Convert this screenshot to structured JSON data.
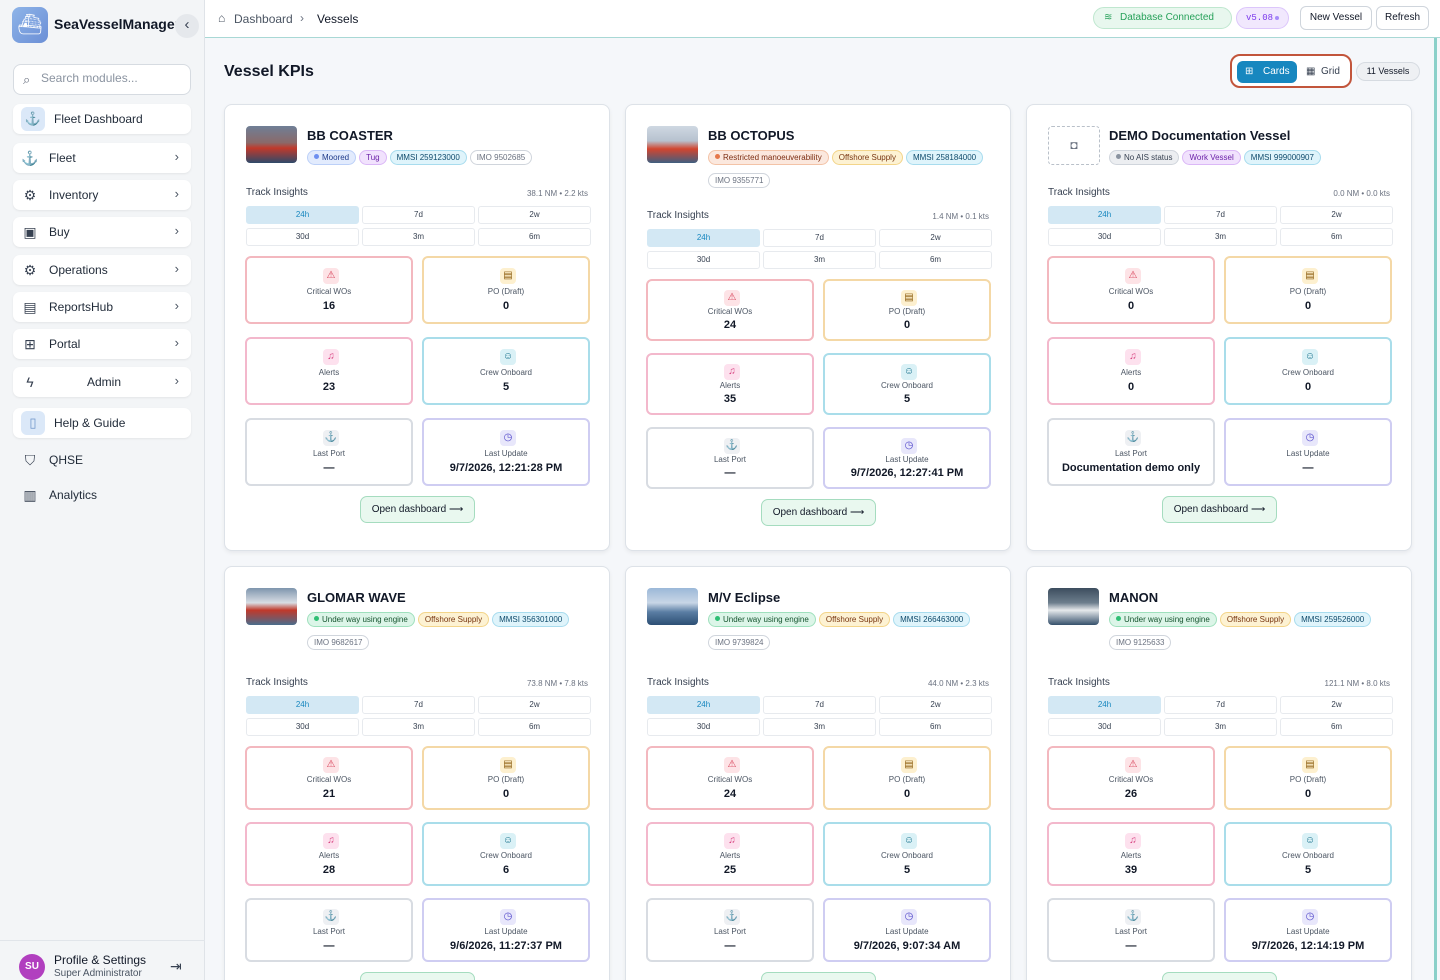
{
  "app": {
    "name": "SeaVesselManager"
  },
  "sidebar": {
    "search_placeholder": "Search modules...",
    "items": [
      {
        "label": "Fleet Dashboard"
      },
      {
        "label": "Fleet"
      },
      {
        "label": "Inventory"
      },
      {
        "label": "Buy"
      },
      {
        "label": "Operations"
      },
      {
        "label": "ReportsHub"
      },
      {
        "label": "Portal"
      },
      {
        "label": "Admin"
      },
      {
        "label": "Help & Guide"
      },
      {
        "label": "QHSE"
      },
      {
        "label": "Analytics"
      }
    ],
    "profile": {
      "initials": "SU",
      "name": "Profile & Settings",
      "role": "Super Administrator"
    }
  },
  "header": {
    "breadcrumb": [
      "Dashboard",
      "Vessels"
    ],
    "db_status": "Database Connected",
    "version": "v5.08",
    "new_vessel": "New Vessel",
    "refresh": "Refresh"
  },
  "main": {
    "title": "Vessel KPIs",
    "view_cards": "Cards",
    "view_grid": "Grid",
    "vessel_count": "11 Vessels"
  },
  "labels": {
    "track_insights": "Track Insights",
    "ranges": [
      "24h",
      "7d",
      "2w",
      "30d",
      "3m",
      "6m"
    ],
    "critical_wos": "Critical WOs",
    "po_draft": "PO (Draft)",
    "alerts": "Alerts",
    "crew_onboard": "Crew Onboard",
    "last_port": "Last Port",
    "last_update": "Last Update",
    "open_dashboard": "Open dashboard ⟶"
  },
  "vessels": [
    {
      "name": "BB COASTER",
      "status": "Moored",
      "type": "Tug",
      "mmsi": "MMSI 259123000",
      "imo": "IMO 9502685",
      "summary": "38.1 NM • 2.2 kts",
      "critical_wos": "16",
      "po_draft": "0",
      "alerts": "23",
      "crew": "5",
      "last_port": "—",
      "last_update": "9/7/2026, 12:21:28 PM"
    },
    {
      "name": "BB OCTOPUS",
      "status": "Restricted manoeuverability",
      "type": "Offshore Supply",
      "mmsi": "MMSI 258184000",
      "imo": "IMO 9355771",
      "summary": "1.4 NM • 0.1 kts",
      "critical_wos": "24",
      "po_draft": "0",
      "alerts": "35",
      "crew": "5",
      "last_port": "—",
      "last_update": "9/7/2026, 12:27:41 PM"
    },
    {
      "name": "DEMO Documentation Vessel",
      "status": "No AIS status",
      "type": "Work Vessel",
      "mmsi": "MMSI 999000907",
      "imo": "",
      "summary": "0.0 NM • 0.0 kts",
      "critical_wos": "0",
      "po_draft": "0",
      "alerts": "0",
      "crew": "0",
      "last_port": "Documentation demo only",
      "last_update": "—"
    },
    {
      "name": "GLOMAR WAVE",
      "status": "Under way using engine",
      "type": "Offshore Supply",
      "mmsi": "MMSI 356301000",
      "imo": "IMO 9682617",
      "summary": "73.8 NM • 7.8 kts",
      "critical_wos": "21",
      "po_draft": "0",
      "alerts": "28",
      "crew": "6",
      "last_port": "—",
      "last_update": "9/6/2026, 11:27:37 PM"
    },
    {
      "name": "M/V Eclipse",
      "status": "Under way using engine",
      "type": "Offshore Supply",
      "mmsi": "MMSI 266463000",
      "imo": "IMO 9739824",
      "summary": "44.0 NM • 2.3 kts",
      "critical_wos": "24",
      "po_draft": "0",
      "alerts": "25",
      "crew": "5",
      "last_port": "—",
      "last_update": "9/7/2026, 9:07:34 AM"
    },
    {
      "name": "MANON",
      "status": "Under way using engine",
      "type": "Offshore Supply",
      "mmsi": "MMSI 259526000",
      "imo": "IMO 9125633",
      "summary": "121.1 NM • 8.0 kts",
      "critical_wos": "26",
      "po_draft": "0",
      "alerts": "39",
      "crew": "5",
      "last_port": "—",
      "last_update": "9/7/2026, 12:14:19 PM"
    }
  ],
  "colors": {
    "accent": "#1787bf",
    "status_green": "#27a15a",
    "brand": "#6b8fd6"
  }
}
